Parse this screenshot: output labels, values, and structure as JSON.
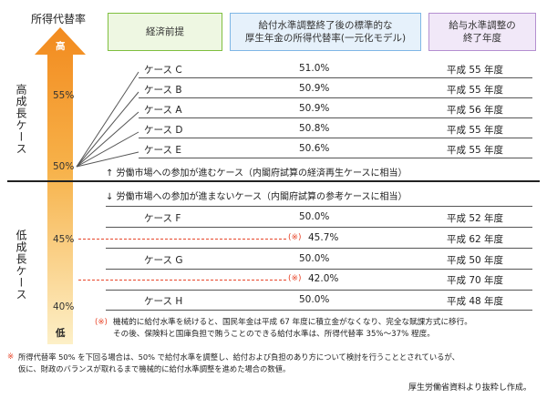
{
  "axis": {
    "title": "所得代替率",
    "high": "高",
    "low": "低",
    "ticks": [
      "55%",
      "50%",
      "45%",
      "40%"
    ]
  },
  "headers": {
    "col1": "経済前提",
    "col2_line1": "給付水準調整終了後の標準的な",
    "col2_line2": "厚生年金の所得代替率(一元化モデル)",
    "col3_line1": "給与水準調整の",
    "col3_line2": "終了年度"
  },
  "side_labels": {
    "high_growth": "高成長ケース",
    "low_growth": "低成長ケース"
  },
  "high_cases": [
    {
      "name": "ケース C",
      "rate": "51.0%",
      "year": "平成 55 年度"
    },
    {
      "name": "ケース B",
      "rate": "50.9%",
      "year": "平成 55 年度"
    },
    {
      "name": "ケース A",
      "rate": "50.9%",
      "year": "平成 56 年度"
    },
    {
      "name": "ケース D",
      "rate": "50.8%",
      "year": "平成 55 年度"
    },
    {
      "name": "ケース E",
      "rate": "50.6%",
      "year": "平成 55 年度"
    }
  ],
  "high_caption": "↑ 労働市場への参加が進むケース（内閣府試算の経済再生ケースに相当）",
  "low_caption": "↓ 労働市場への参加が進まないケース（内閣府試算の参考ケースに相当）",
  "low_cases": [
    {
      "name": "ケース F",
      "rate": "50.0%",
      "year": "平成 52 年度"
    },
    {
      "name": "",
      "mark": "(※)",
      "rate": "45.7%",
      "year": "平成 62 年度"
    },
    {
      "name": "ケース G",
      "rate": "50.0%",
      "year": "平成 50 年度"
    },
    {
      "name": "",
      "mark": "(※)",
      "rate": "42.0%",
      "year": "平成 70 年度"
    },
    {
      "name": "ケース H",
      "rate": "50.0%",
      "year": "平成 48 年度"
    }
  ],
  "notes": {
    "mark1": "(※)",
    "note1_line1": "機械的に給付水準を続けると、国民年金は平成 67 年度に積立金がなくなり、完全な賦課方式に移行。",
    "note1_line2": "その後、保険料と国庫負担で賄うことのできる給付水準は、所得代替率 35%〜37% 程度。",
    "mark2": "※",
    "note2_line1": "所得代替率 50% を下回る場合は、50% で給付水準を調整し、給付および負担のあり方について検討を行うこととされているが、",
    "note2_line2": "仮に、財政のバランスが取れるまで機械的に給付水準調整を進めた場合の数値。"
  },
  "source": "厚生労働省資料より抜粋し作成。",
  "colors": {
    "arrow_top": "#f28a1e",
    "arrow_bottom": "#fde9b8",
    "col1_border": "#7fbf3f",
    "col1_bg": "#eef7e2",
    "col2_border": "#7fb7e6",
    "col2_bg": "#e6f1fb",
    "col3_border": "#b48fd0",
    "col3_bg": "#f1e8f8",
    "dash": "#e8462a"
  }
}
